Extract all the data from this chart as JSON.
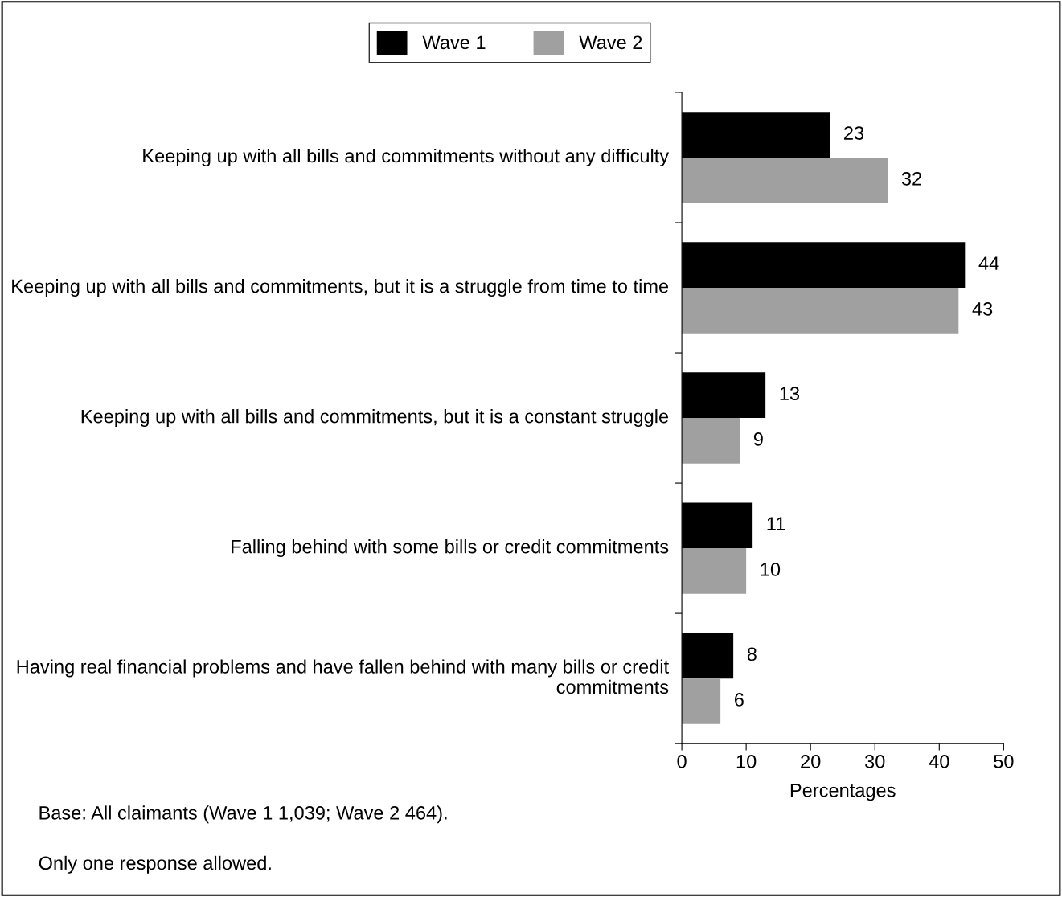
{
  "chart_data": {
    "type": "bar",
    "orientation": "horizontal",
    "categories": [
      "Keeping up with all bills and commitments without any difficulty",
      "Keeping up with all bills and commitments, but it is a struggle from time to time",
      "Keeping up with all bills and commitments, but it is a constant struggle",
      "Falling behind with some bills or credit commitments",
      "Having real financial problems and have fallen behind with many bills or credit commitments"
    ],
    "series": [
      {
        "name": "Wave 1",
        "color": "#000000",
        "values": [
          23,
          44,
          13,
          11,
          8
        ]
      },
      {
        "name": "Wave 2",
        "color": "#a0a0a0",
        "values": [
          32,
          43,
          9,
          10,
          6
        ]
      }
    ],
    "xlim": [
      0,
      50
    ],
    "xticks": [
      0,
      10,
      20,
      30,
      40,
      50
    ],
    "xlabel": "Percentages",
    "data_labels": true,
    "legend": "top",
    "grid": false,
    "annotations": [
      "Base: All claimants (Wave 1 1,039; Wave 2 464).",
      "Only one response allowed."
    ]
  }
}
